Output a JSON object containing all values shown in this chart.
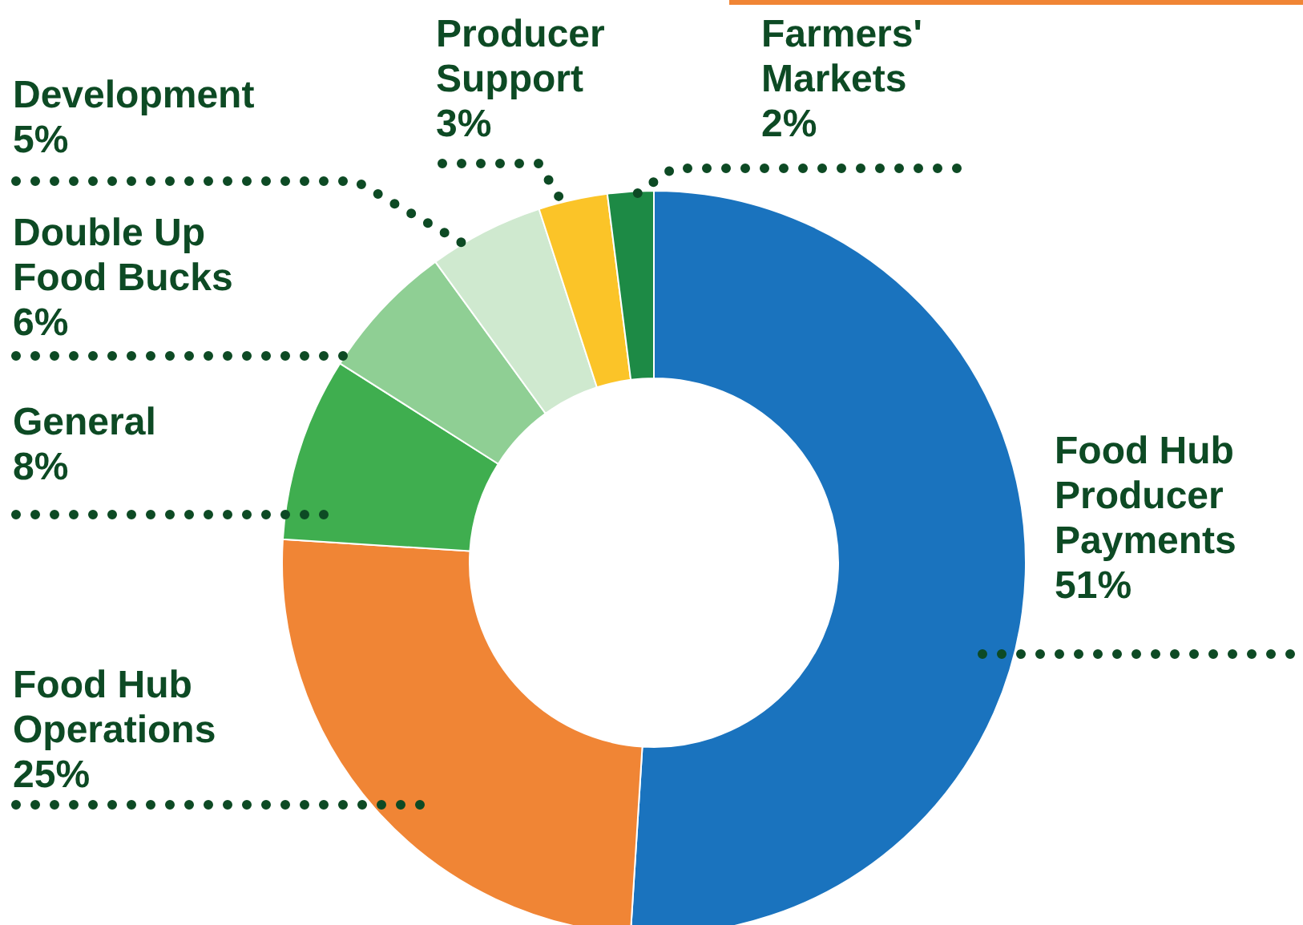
{
  "chart_data": {
    "type": "donut",
    "categories": [
      "Food Hub Producer Payments",
      "Food Hub Operations",
      "General",
      "Double Up Food Bucks",
      "Development",
      "Producer Support",
      "Farmers' Markets"
    ],
    "values": [
      51,
      25,
      8,
      6,
      5,
      3,
      2
    ],
    "value_labels": [
      "51%",
      "25%",
      "8%",
      "6%",
      "5%",
      "3%",
      "2%"
    ],
    "colors": [
      "#1a73be",
      "#f08535",
      "#3fae4f",
      "#8fcf94",
      "#cfe9cf",
      "#fbc428",
      "#1d8a45"
    ]
  }
}
